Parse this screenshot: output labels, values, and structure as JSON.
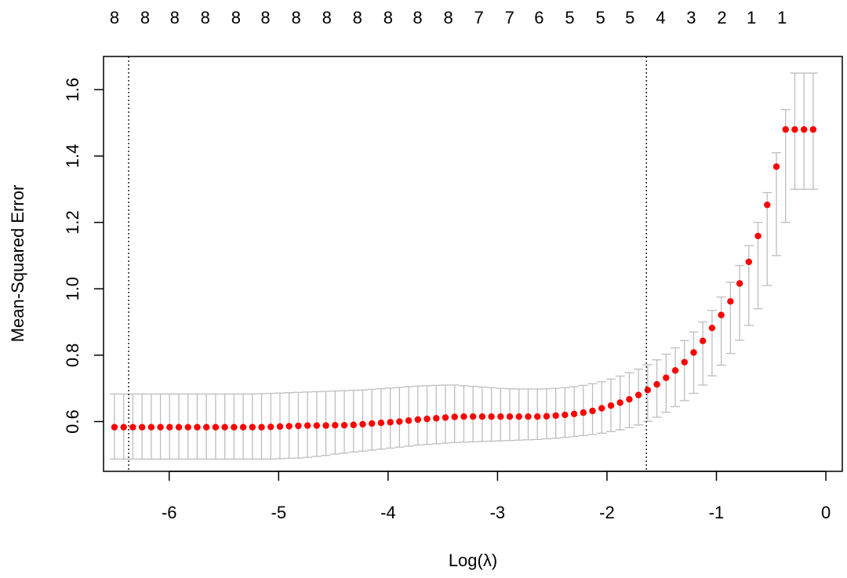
{
  "chart_data": {
    "type": "scatter",
    "xlabel": "Log(λ)",
    "ylabel": "Mean-Squared Error",
    "xlim": [
      -6.6,
      0.15
    ],
    "ylim": [
      0.45,
      1.7
    ],
    "x_ticks": [
      -6,
      -5,
      -4,
      -3,
      -2,
      -1,
      0
    ],
    "x_tick_labels": [
      "-6",
      "-5",
      "-4",
      "-3",
      "-2",
      "-1",
      "0"
    ],
    "y_ticks": [
      0.6,
      0.8,
      1.0,
      1.2,
      1.4,
      1.6
    ],
    "y_tick_labels": [
      "0.6",
      "0.8",
      "1.0",
      "1.2",
      "1.4",
      "1.6"
    ],
    "top_axis": {
      "x": [
        -6.5,
        -6.22,
        -5.95,
        -5.67,
        -5.39,
        -5.12,
        -4.84,
        -4.56,
        -4.28,
        -4.0,
        -3.73,
        -3.45,
        -3.17,
        -2.89,
        -2.62,
        -2.34,
        -2.06,
        -1.79,
        -1.51,
        -1.23,
        -0.95,
        -0.68,
        -0.4
      ],
      "labels": [
        "8",
        "8",
        "8",
        "8",
        "8",
        "8",
        "8",
        "8",
        "8",
        "8",
        "8",
        "8",
        "7",
        "7",
        "6",
        "5",
        "5",
        "5",
        "4",
        "3",
        "2",
        "1",
        "1"
      ]
    },
    "vlines": [
      -6.37,
      -1.64
    ],
    "colors": {
      "point": "#ff0000",
      "errorbar": "#bebebe",
      "vline": "#000000"
    },
    "x": [
      -6.5,
      -6.416,
      -6.332,
      -6.248,
      -6.164,
      -6.08,
      -5.996,
      -5.912,
      -5.828,
      -5.744,
      -5.66,
      -5.576,
      -5.492,
      -5.408,
      -5.324,
      -5.24,
      -5.156,
      -5.072,
      -4.988,
      -4.904,
      -4.82,
      -4.736,
      -4.652,
      -4.568,
      -4.484,
      -4.4,
      -4.316,
      -4.232,
      -4.148,
      -4.064,
      -3.98,
      -3.896,
      -3.812,
      -3.728,
      -3.644,
      -3.56,
      -3.476,
      -3.392,
      -3.308,
      -3.224,
      -3.14,
      -3.056,
      -2.972,
      -2.888,
      -2.804,
      -2.72,
      -2.636,
      -2.552,
      -2.468,
      -2.384,
      -2.3,
      -2.216,
      -2.132,
      -2.048,
      -1.964,
      -1.88,
      -1.796,
      -1.712,
      -1.628,
      -1.544,
      -1.46,
      -1.376,
      -1.292,
      -1.208,
      -1.124,
      -1.04,
      -0.956,
      -0.872,
      -0.788,
      -0.704,
      -0.62,
      -0.536,
      -0.452,
      -0.368,
      -0.284,
      -0.2,
      -0.116
    ],
    "y": [
      0.583,
      0.583,
      0.583,
      0.583,
      0.583,
      0.583,
      0.583,
      0.583,
      0.583,
      0.583,
      0.583,
      0.583,
      0.583,
      0.583,
      0.583,
      0.583,
      0.583,
      0.584,
      0.585,
      0.586,
      0.587,
      0.588,
      0.588,
      0.588,
      0.589,
      0.589,
      0.59,
      0.592,
      0.594,
      0.596,
      0.598,
      0.6,
      0.603,
      0.606,
      0.608,
      0.61,
      0.612,
      0.614,
      0.615,
      0.615,
      0.615,
      0.615,
      0.615,
      0.615,
      0.615,
      0.615,
      0.615,
      0.616,
      0.618,
      0.62,
      0.623,
      0.627,
      0.632,
      0.64,
      0.648,
      0.657,
      0.667,
      0.68,
      0.695,
      0.712,
      0.732,
      0.754,
      0.779,
      0.808,
      0.843,
      0.882,
      0.921,
      0.962,
      1.016,
      1.081,
      1.159,
      1.253,
      1.368,
      1.48,
      1.48,
      1.48,
      1.48
    ],
    "error_low": [
      0.487,
      0.487,
      0.487,
      0.487,
      0.487,
      0.487,
      0.487,
      0.487,
      0.487,
      0.487,
      0.487,
      0.487,
      0.487,
      0.487,
      0.487,
      0.487,
      0.487,
      0.487,
      0.488,
      0.489,
      0.49,
      0.492,
      0.495,
      0.498,
      0.502,
      0.505,
      0.508,
      0.511,
      0.514,
      0.517,
      0.52,
      0.523,
      0.526,
      0.529,
      0.531,
      0.533,
      0.535,
      0.537,
      0.538,
      0.539,
      0.54,
      0.541,
      0.542,
      0.543,
      0.544,
      0.545,
      0.546,
      0.548,
      0.55,
      0.552,
      0.555,
      0.558,
      0.561,
      0.565,
      0.57,
      0.575,
      0.582,
      0.59,
      0.601,
      0.613,
      0.628,
      0.645,
      0.663,
      0.685,
      0.71,
      0.738,
      0.77,
      0.805,
      0.845,
      0.89,
      0.94,
      1.01,
      1.1,
      1.2,
      1.3,
      1.3,
      1.3
    ],
    "error_high": [
      0.683,
      0.683,
      0.683,
      0.683,
      0.683,
      0.683,
      0.683,
      0.683,
      0.683,
      0.683,
      0.683,
      0.683,
      0.683,
      0.683,
      0.683,
      0.683,
      0.684,
      0.685,
      0.686,
      0.687,
      0.688,
      0.689,
      0.69,
      0.691,
      0.692,
      0.693,
      0.694,
      0.695,
      0.697,
      0.699,
      0.701,
      0.703,
      0.705,
      0.707,
      0.708,
      0.709,
      0.71,
      0.71,
      0.708,
      0.706,
      0.704,
      0.702,
      0.7,
      0.699,
      0.698,
      0.698,
      0.698,
      0.699,
      0.7,
      0.702,
      0.705,
      0.709,
      0.714,
      0.72,
      0.728,
      0.737,
      0.747,
      0.758,
      0.771,
      0.786,
      0.803,
      0.822,
      0.844,
      0.87,
      0.9,
      0.935,
      0.975,
      1.02,
      1.07,
      1.13,
      1.2,
      1.29,
      1.41,
      1.54,
      1.65,
      1.65,
      1.65
    ]
  }
}
